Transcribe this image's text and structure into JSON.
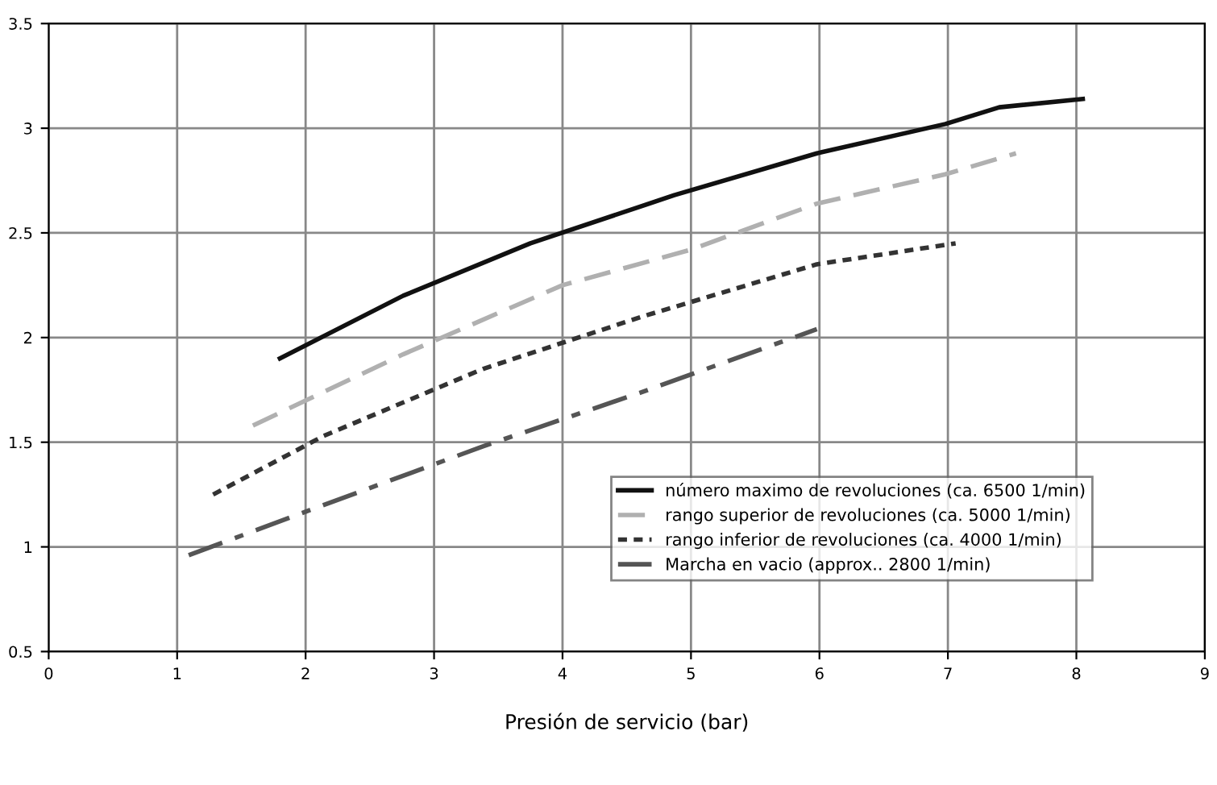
{
  "chart_data": {
    "type": "line",
    "xlabel": "Presión de servicio (bar)",
    "xlim": [
      0,
      9
    ],
    "xticks": [
      0,
      1,
      2,
      3,
      4,
      5,
      6,
      7,
      8,
      9
    ],
    "ylim": [
      0.5,
      3.5
    ],
    "yticks": [
      0.5,
      1,
      1.5,
      2,
      2.5,
      3,
      3.5
    ],
    "grid": true,
    "legend": "bottom right",
    "series": [
      {
        "name": "número maximo de revoluciones (ca. 6500 1/min)",
        "color": "#111111",
        "line_style": "solid",
        "x": [
          1.8,
          2.76,
          3.75,
          4.87,
          5.98,
          6.98,
          7.4,
          8.05
        ],
        "values": [
          1.9,
          2.2,
          2.45,
          2.68,
          2.88,
          3.02,
          3.1,
          3.14
        ]
      },
      {
        "name": "rango superior de revoluciones (ca. 5000 1/min)",
        "color": "#b0b0b0",
        "line_style": "dashed",
        "x": [
          1.59,
          2.76,
          4.0,
          5.0,
          5.98,
          6.98,
          7.53
        ],
        "values": [
          1.58,
          1.92,
          2.25,
          2.42,
          2.64,
          2.78,
          2.88
        ]
      },
      {
        "name": "rango inferior de revoluciones (ca. 4000 1/min)",
        "color": "#333333",
        "line_style": "dotted",
        "x": [
          1.28,
          2.14,
          3.38,
          4.62,
          5.98,
          7.06
        ],
        "values": [
          1.25,
          1.53,
          1.85,
          2.1,
          2.35,
          2.45
        ]
      },
      {
        "name": "Marcha en vacio (approx.. 2800 1/min)",
        "color": "#555555",
        "line_style": "dashdot",
        "x": [
          1.09,
          2.14,
          3.38,
          4.62,
          5.98
        ],
        "values": [
          0.96,
          1.2,
          1.48,
          1.74,
          2.04
        ]
      }
    ]
  }
}
